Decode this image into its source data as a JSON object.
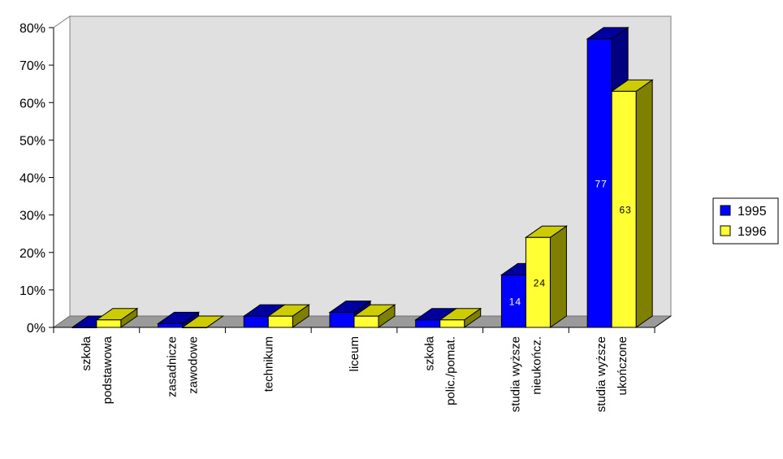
{
  "chart_data": {
    "type": "bar",
    "title": "",
    "xlabel": "",
    "ylabel": "",
    "categories": [
      [
        "szkoła",
        "podstawowa"
      ],
      [
        "zasadnicze",
        "zawodowe"
      ],
      [
        "technikum"
      ],
      [
        "liceum"
      ],
      [
        "szkoła",
        "polic./pomat."
      ],
      [
        "studia wyższe",
        "nieukończ."
      ],
      [
        "studia wyższe",
        "ukończone"
      ]
    ],
    "series": [
      {
        "name": "1995",
        "values": [
          0,
          1,
          3,
          4,
          2,
          14,
          77
        ],
        "data_labels": [
          "",
          "",
          "",
          "",
          "",
          "14",
          "77"
        ]
      },
      {
        "name": "1996",
        "values": [
          2,
          0,
          3,
          3,
          2,
          24,
          63
        ],
        "data_labels": [
          "",
          "",
          "",
          "",
          "",
          "24",
          "63"
        ]
      }
    ],
    "ylim": [
      0,
      80
    ],
    "yticks": [
      "0%",
      "10%",
      "20%",
      "30%",
      "40%",
      "50%",
      "60%",
      "70%",
      "80%"
    ],
    "grid": false,
    "legend": "right",
    "colors": {
      "series": [
        "#0000ff",
        "#ffff33"
      ],
      "series_top": [
        "#0000a0",
        "#cccc00"
      ],
      "series_side": [
        "#000080",
        "#808000"
      ],
      "back_wall": "#e0e0e0",
      "floor": "#9a9a9a"
    }
  }
}
